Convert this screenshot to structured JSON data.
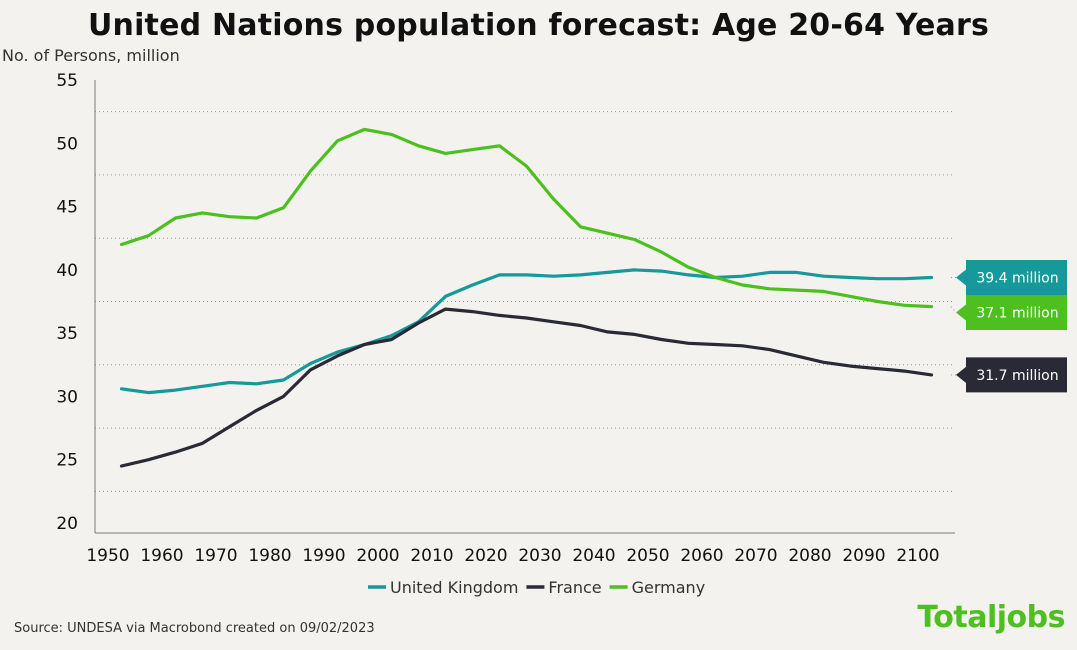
{
  "chart_data": {
    "type": "line",
    "title": "United Nations population forecast: Age 20-64 Years",
    "ylabel": "No. of Persons, million",
    "xlabel": "",
    "xlim": [
      1950,
      2110
    ],
    "ylim": [
      20,
      55
    ],
    "x_ticks": [
      1950,
      1960,
      1970,
      1980,
      1990,
      2000,
      2010,
      2020,
      2030,
      2040,
      2050,
      2060,
      2070,
      2080,
      2090,
      2100
    ],
    "y_ticks": [
      20,
      25,
      30,
      35,
      40,
      45,
      50,
      55
    ],
    "grid": "horizontal dotted",
    "legend_position": "bottom",
    "x": [
      1952.5,
      1957.5,
      1962.5,
      1967.5,
      1972.5,
      1977.5,
      1982.5,
      1987.5,
      1992.5,
      1997.5,
      2002.5,
      2007.5,
      2012.5,
      2017.5,
      2022.5,
      2027.5,
      2032.5,
      2037.5,
      2042.5,
      2047.5,
      2052.5,
      2057.5,
      2062.5,
      2067.5,
      2072.5,
      2077.5,
      2082.5,
      2087.5,
      2092.5,
      2097.5,
      2102.5
    ],
    "series": [
      {
        "name": "United Kingdom",
        "color": "#16999a",
        "values": [
          30.6,
          30.3,
          30.5,
          30.8,
          31.1,
          31.0,
          31.3,
          32.6,
          33.5,
          34.1,
          34.8,
          35.9,
          37.9,
          38.8,
          39.6,
          39.6,
          39.5,
          39.6,
          39.8,
          40.0,
          39.9,
          39.6,
          39.4,
          39.5,
          39.8,
          39.8,
          39.5,
          39.4,
          39.3,
          39.3,
          39.4
        ],
        "end_label": "39.4 million"
      },
      {
        "name": "France",
        "color": "#2a2936",
        "values": [
          24.5,
          25.0,
          25.6,
          26.3,
          27.6,
          28.9,
          30.0,
          32.1,
          33.2,
          34.1,
          34.5,
          35.8,
          36.9,
          36.7,
          36.4,
          36.2,
          35.9,
          35.6,
          35.1,
          34.9,
          34.5,
          34.2,
          34.1,
          34.0,
          33.7,
          33.2,
          32.7,
          32.4,
          32.2,
          32.0,
          31.7
        ],
        "end_label": "31.7 million"
      },
      {
        "name": "Germany",
        "color": "#4dbf1f",
        "values": [
          42.0,
          42.7,
          44.1,
          44.5,
          44.2,
          44.1,
          44.9,
          47.8,
          50.2,
          51.1,
          50.7,
          49.8,
          49.2,
          49.5,
          49.8,
          48.2,
          45.6,
          43.4,
          42.9,
          42.4,
          41.4,
          40.2,
          39.4,
          38.8,
          38.5,
          38.4,
          38.3,
          37.9,
          37.5,
          37.2,
          37.1
        ],
        "end_label": "37.1 million"
      }
    ]
  },
  "footer": {
    "source": "Source: UNDESA via Macrobond created on 09/02/2023",
    "brand": "Totaljobs",
    "brand_color": "#4dbf1f"
  }
}
